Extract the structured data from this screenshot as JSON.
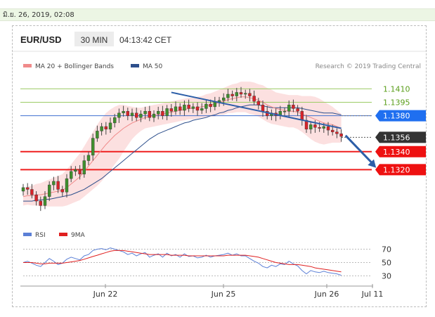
{
  "date_header": "มิ.ย. 26, 2019, 02:08",
  "chart_data": {
    "type": "candlestick",
    "symbol": "EUR/USD",
    "timeframe": "30 MIN",
    "time": "04:13:42 CET",
    "research_credit": "Research © 2019 Trading Central",
    "legend": [
      {
        "label": "MA 20 + Bollinger Bands",
        "color": "#f08a8a"
      },
      {
        "label": "MA 50",
        "color": "#2d4f8c"
      }
    ],
    "ylim": [
      1.126,
      1.144
    ],
    "x_ticks": [
      "Jun 22",
      "Jun 25",
      "Jun 26",
      "Jul 11"
    ],
    "levels": [
      {
        "label": "1.1410",
        "value": 1.141,
        "kind": "green"
      },
      {
        "label": "1.1395",
        "value": 1.1395,
        "kind": "green"
      },
      {
        "label": "1.1380",
        "value": 1.138,
        "kind": "blue"
      },
      {
        "label": "1.1356",
        "value": 1.1356,
        "kind": "dark"
      },
      {
        "label": "1.1340",
        "value": 1.134,
        "kind": "red"
      },
      {
        "label": "1.1320",
        "value": 1.132,
        "kind": "red"
      }
    ],
    "price": [
      1.13,
      1.1298,
      1.1292,
      1.1285,
      1.128,
      1.129,
      1.1303,
      1.1307,
      1.1298,
      1.1295,
      1.131,
      1.1318,
      1.132,
      1.1315,
      1.133,
      1.1336,
      1.1355,
      1.1363,
      1.1368,
      1.1365,
      1.1372,
      1.1378,
      1.1383,
      1.1385,
      1.138,
      1.1383,
      1.1378,
      1.1382,
      1.1385,
      1.1378,
      1.1382,
      1.1385,
      1.138,
      1.1388,
      1.1385,
      1.139,
      1.1386,
      1.1392,
      1.1388,
      1.139,
      1.1386,
      1.1388,
      1.1393,
      1.139,
      1.1395,
      1.1397,
      1.14,
      1.1404,
      1.1402,
      1.1406,
      1.1404,
      1.1405,
      1.1402,
      1.1396,
      1.1392,
      1.1385,
      1.138,
      1.1383,
      1.138,
      1.1385,
      1.1385,
      1.1392,
      1.1388,
      1.1385,
      1.1375,
      1.1365,
      1.137,
      1.1367,
      1.1366,
      1.1368,
      1.1364,
      1.1362,
      1.136,
      1.1357
    ],
    "ma20": [
      1.129,
      1.1291,
      1.1291,
      1.1292,
      1.1292,
      1.1293,
      1.1294,
      1.1295,
      1.1296,
      1.1297,
      1.13,
      1.1304,
      1.1308,
      1.1312,
      1.1318,
      1.1324,
      1.133,
      1.1336,
      1.1342,
      1.1348,
      1.1353,
      1.1358,
      1.1362,
      1.1366,
      1.1369,
      1.1372,
      1.1374,
      1.1376,
      1.1378,
      1.1379,
      1.138,
      1.1381,
      1.1382,
      1.1383,
      1.1384,
      1.1385,
      1.1386,
      1.1387,
      1.1388,
      1.1388,
      1.1389,
      1.139,
      1.1391,
      1.1392,
      1.1393,
      1.1395,
      1.1396,
      1.1398,
      1.1399,
      1.14,
      1.1401,
      1.1401,
      1.14,
      1.1399,
      1.1397,
      1.1395,
      1.1392,
      1.139,
      1.1388,
      1.1387,
      1.1386,
      1.1385,
      1.1385,
      1.1384,
      1.1382,
      1.138,
      1.1378,
      1.1376,
      1.1374,
      1.1372,
      1.1371,
      1.137,
      1.1368,
      1.1366
    ],
    "bb_width": [
      0.001,
      0.001,
      0.0011,
      0.0012,
      0.0013,
      0.0014,
      0.0015,
      0.0016,
      0.0017,
      0.0018,
      0.002,
      0.0022,
      0.0024,
      0.0026,
      0.0028,
      0.003,
      0.0032,
      0.0034,
      0.0035,
      0.0035,
      0.0034,
      0.0032,
      0.003,
      0.0026,
      0.0022,
      0.0018,
      0.0015,
      0.0013,
      0.0012,
      0.0012,
      0.0012,
      0.0012,
      0.0012,
      0.0012,
      0.0012,
      0.0012,
      0.0012,
      0.0012,
      0.0012,
      0.0012,
      0.0012,
      0.0012,
      0.0013,
      0.0013,
      0.0014,
      0.0014,
      0.0015,
      0.0015,
      0.0016,
      0.0016,
      0.0017,
      0.0017,
      0.0018,
      0.0018,
      0.0018,
      0.0019,
      0.0019,
      0.0019,
      0.0018,
      0.0018,
      0.0018,
      0.0018,
      0.0018,
      0.0019,
      0.002,
      0.0022,
      0.0024,
      0.0025,
      0.0025,
      0.0024,
      0.0022,
      0.002,
      0.0018,
      0.0016
    ],
    "ma50": [
      1.1285,
      1.1285,
      1.1285,
      1.1286,
      1.1286,
      1.1287,
      1.1287,
      1.1288,
      1.1289,
      1.129,
      1.1291,
      1.1292,
      1.1294,
      1.1296,
      1.1298,
      1.1301,
      1.1304,
      1.1307,
      1.131,
      1.1314,
      1.1318,
      1.1322,
      1.1326,
      1.133,
      1.1334,
      1.1338,
      1.1342,
      1.1346,
      1.135,
      1.1354,
      1.1357,
      1.136,
      1.1362,
      1.1364,
      1.1366,
      1.1368,
      1.137,
      1.1372,
      1.1373,
      1.1375,
      1.1376,
      1.1377,
      1.1378,
      1.138,
      1.1381,
      1.1383,
      1.1384,
      1.1386,
      1.1387,
      1.1389,
      1.139,
      1.1391,
      1.1392,
      1.1392,
      1.1392,
      1.1391,
      1.139,
      1.1389,
      1.1389,
      1.1389,
      1.1389,
      1.1389,
      1.1389,
      1.1389,
      1.1388,
      1.1387,
      1.1386,
      1.1385,
      1.1384,
      1.1383,
      1.1383,
      1.1383,
      1.1382,
      1.1381
    ],
    "trendline": {
      "from": [
        34,
        1.1406
      ],
      "to": [
        73,
        1.1366
      ]
    },
    "forecast_arrow": {
      "from": [
        74,
        1.1358
      ],
      "to": [
        81,
        1.1322
      ]
    },
    "rsi_panel": {
      "legend": [
        {
          "label": "RSI",
          "color": "#5b7fd6"
        },
        {
          "label": "9MA",
          "color": "#e02020"
        }
      ],
      "ylim": [
        20,
        80
      ],
      "y_ticks": [
        "70",
        "50",
        "30"
      ],
      "rsi": [
        50,
        52,
        49,
        46,
        44,
        50,
        56,
        52,
        47,
        49,
        55,
        58,
        56,
        54,
        60,
        62,
        68,
        70,
        71,
        69,
        72,
        70,
        68,
        66,
        62,
        64,
        60,
        63,
        65,
        58,
        61,
        63,
        58,
        64,
        60,
        62,
        58,
        63,
        59,
        60,
        57,
        58,
        61,
        58,
        60,
        61,
        62,
        64,
        61,
        63,
        60,
        60,
        56,
        52,
        49,
        44,
        42,
        46,
        44,
        48,
        47,
        52,
        48,
        45,
        38,
        33,
        38,
        36,
        35,
        37,
        35,
        34,
        33,
        31
      ],
      "ma9": [
        50,
        50,
        50,
        49,
        48,
        48,
        49,
        49,
        49,
        49,
        50,
        51,
        52,
        53,
        55,
        57,
        59,
        61,
        63,
        65,
        67,
        68,
        68,
        68,
        67,
        66,
        65,
        64,
        63,
        62,
        62,
        62,
        62,
        62,
        61,
        61,
        61,
        61,
        60,
        60,
        60,
        60,
        60,
        60,
        60,
        60,
        60,
        61,
        61,
        61,
        61,
        61,
        60,
        59,
        58,
        56,
        54,
        52,
        50,
        49,
        48,
        47,
        47,
        47,
        46,
        45,
        44,
        42,
        41,
        40,
        39,
        38,
        37,
        36
      ]
    }
  }
}
